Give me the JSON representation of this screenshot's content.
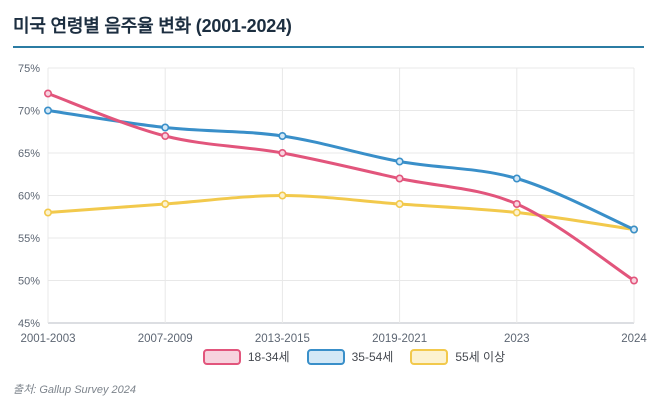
{
  "header": {
    "title": "미국 연령별 음주율 변화 (2001-2024)"
  },
  "chart_data": {
    "type": "line",
    "title": "미국 연령별 음주율 변화 (2001-2024)",
    "categories": [
      "2001-2003",
      "2007-2009",
      "2013-2015",
      "2019-2021",
      "2023",
      "2024"
    ],
    "series": [
      {
        "name": "18-34세",
        "color": "#e2557c",
        "fill": "#f7d3de",
        "values": [
          72,
          67,
          65,
          62,
          59,
          50
        ]
      },
      {
        "name": "35-54세",
        "color": "#398fc9",
        "fill": "#d3e8f6",
        "values": [
          70,
          68,
          67,
          64,
          62,
          56
        ]
      },
      {
        "name": "55세 이상",
        "color": "#f2c94c",
        "fill": "#fcf2d0",
        "values": [
          58,
          59,
          60,
          59,
          58,
          56
        ]
      }
    ],
    "ylim": [
      45,
      75
    ],
    "ytick_values": [
      45,
      50,
      55,
      60,
      65,
      70,
      75
    ],
    "ytick_labels": [
      "45%",
      "50%",
      "55%",
      "60%",
      "65%",
      "70%",
      "75%"
    ],
    "grid": true,
    "legend_position": "bottom",
    "xlabel": "",
    "ylabel": ""
  },
  "colors": {
    "title_text": "#1c2e40",
    "title_underline": "#2b7ca3",
    "axis_line": "#b9bec4",
    "grid_line": "#e8e8e8",
    "tick_text": "#5d6673"
  },
  "footer": {
    "source": "출처: Gallup Survey 2024"
  }
}
